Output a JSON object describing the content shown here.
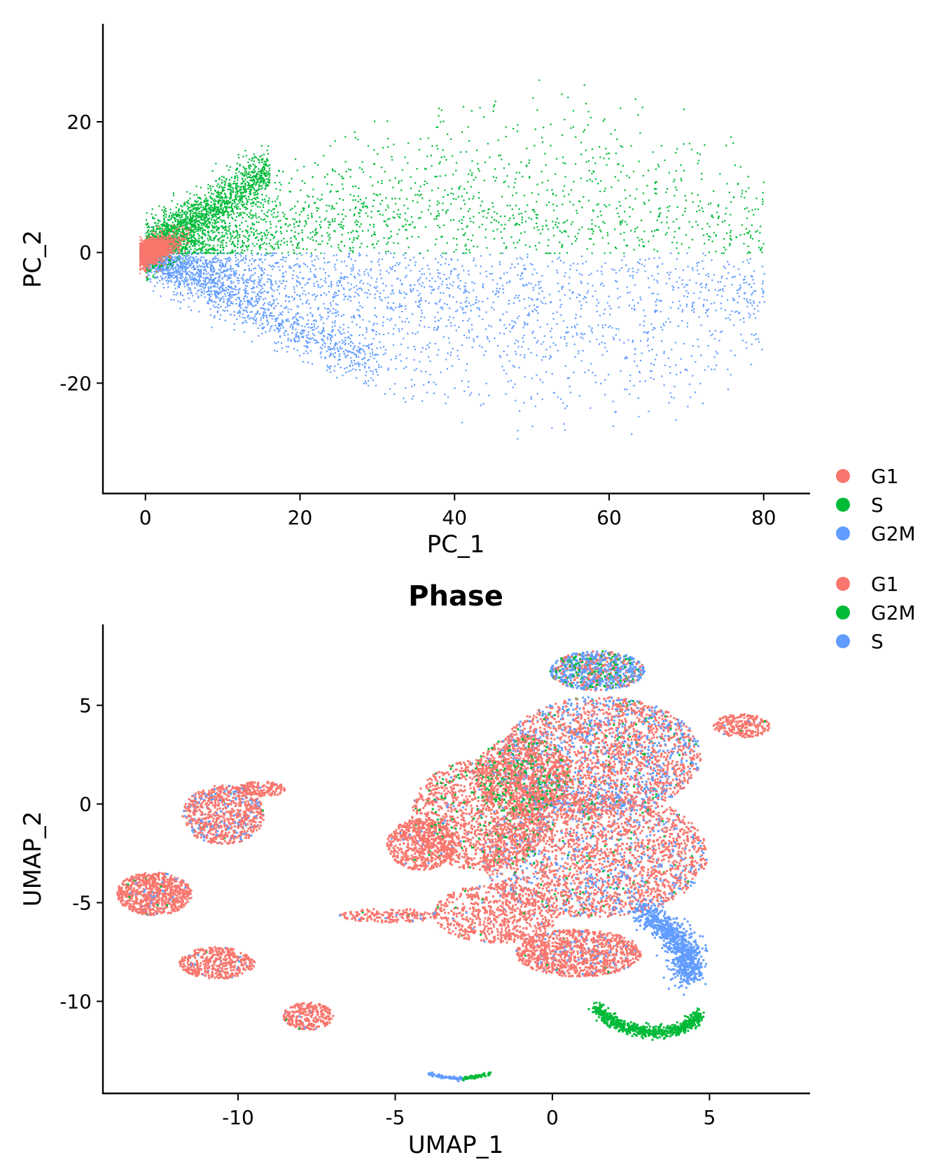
{
  "chart_data": [
    {
      "type": "scatter",
      "title": "",
      "xlabel": "PC_1",
      "ylabel": "PC_2",
      "xlim": [
        -5.5,
        86
      ],
      "ylim": [
        -37,
        35
      ],
      "xticks": [
        0,
        20,
        40,
        60,
        80
      ],
      "yticks": [
        -20,
        0,
        20
      ],
      "xtick_labels": [
        "0",
        "20",
        "40",
        "60",
        "80"
      ],
      "ytick_labels": [
        "-20",
        "0",
        "20"
      ],
      "legend": [
        {
          "label": "G1",
          "color": "#F8766D"
        },
        {
          "label": "S",
          "color": "#00BA38"
        },
        {
          "label": "G2M",
          "color": "#619CFF"
        }
      ],
      "legend_position": "right",
      "series": [
        {
          "name": "G1",
          "color": "#F8766D",
          "shape": "dense cone near origin",
          "x_range": [
            -1,
            5
          ],
          "y_range": [
            -2,
            4
          ]
        },
        {
          "name": "S",
          "color": "#00BA38",
          "shape": "upper wedge",
          "x_range": [
            0,
            82
          ],
          "y_range": [
            0,
            31
          ]
        },
        {
          "name": "G2M",
          "color": "#619CFF",
          "shape": "lower wedge",
          "x_range": [
            0,
            81
          ],
          "y_range": [
            -34,
            0
          ]
        }
      ],
      "grid": false
    },
    {
      "type": "scatter",
      "title": "Phase",
      "xlabel": "UMAP_1",
      "ylabel": "UMAP_2",
      "xlim": [
        -14.3,
        8.2
      ],
      "ylim": [
        -14.7,
        9.1
      ],
      "xticks": [
        -10,
        -5,
        0,
        5
      ],
      "yticks": [
        -10,
        -5,
        0,
        5
      ],
      "xtick_labels": [
        "-10",
        "-5",
        "0",
        "5"
      ],
      "ytick_labels": [
        "-10",
        "-5",
        "0",
        "5"
      ],
      "legend": [
        {
          "label": "G1",
          "color": "#F8766D"
        },
        {
          "label": "G2M",
          "color": "#00BA38"
        },
        {
          "label": "S",
          "color": "#619CFF"
        }
      ],
      "legend_position": "right",
      "series": [
        {
          "name": "G1",
          "color": "#F8766D"
        },
        {
          "name": "G2M",
          "color": "#00BA38"
        },
        {
          "name": "S",
          "color": "#619CFF"
        }
      ],
      "grid": false
    }
  ]
}
